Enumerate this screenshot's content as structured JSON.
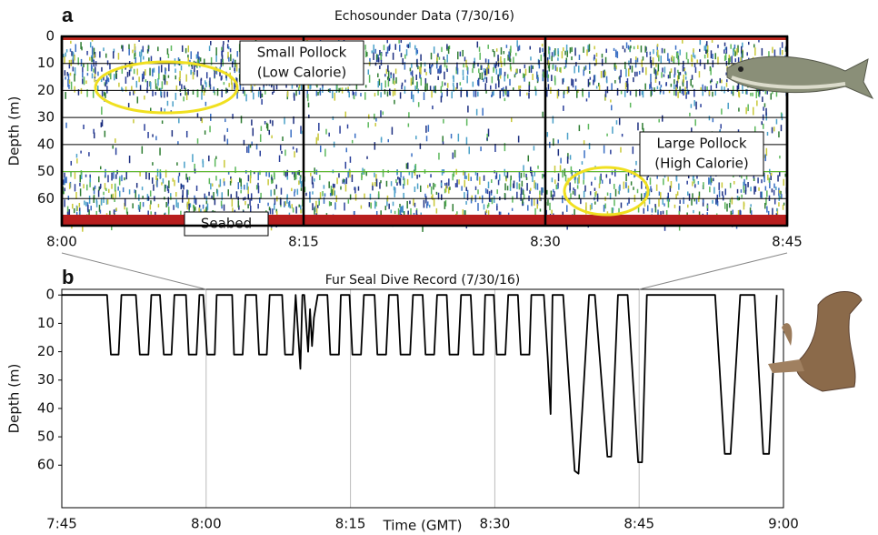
{
  "chart_data": [
    {
      "type": "echogram",
      "label": "a",
      "title": "Echosounder Data (7/30/16)",
      "ylabel": "Depth (m)",
      "xlim": [
        480,
        525
      ],
      "xticks": [
        {
          "value": 480,
          "label": "8:00"
        },
        {
          "value": 495,
          "label": "8:15"
        },
        {
          "value": 510,
          "label": "8:30"
        },
        {
          "value": 525,
          "label": "8:45"
        }
      ],
      "ylim": [
        0,
        70
      ],
      "yticks": [
        0,
        10,
        20,
        30,
        40,
        50,
        60
      ],
      "grid": "y",
      "annotations": [
        {
          "lines": [
            "Small Pollock",
            "(Low Calorie)"
          ]
        },
        {
          "lines": [
            "Large Pollock",
            "(High Calorie)"
          ]
        },
        {
          "lines": [
            "Seabed"
          ]
        }
      ]
    },
    {
      "type": "line",
      "label": "b",
      "title": "Fur Seal Dive Record (7/30/16)",
      "xlabel": "Time (GMT)",
      "ylabel": "Depth (m)",
      "xlim": [
        465,
        540
      ],
      "xticks": [
        {
          "value": 465,
          "label": "7:45"
        },
        {
          "value": 480,
          "label": "8:00"
        },
        {
          "value": 495,
          "label": "8:15"
        },
        {
          "value": 510,
          "label": "8:30"
        },
        {
          "value": 525,
          "label": "8:45"
        },
        {
          "value": 540,
          "label": "9:00"
        }
      ],
      "ylim": [
        -2,
        75
      ],
      "yticks": [
        0,
        10,
        20,
        30,
        40,
        50,
        60
      ],
      "grid": "x",
      "x": [
        465,
        469.7,
        470.1,
        470.9,
        471.2,
        472.7,
        473.1,
        474.0,
        474.3,
        475.2,
        475.6,
        476.4,
        476.7,
        477.9,
        478.2,
        479.0,
        479.3,
        479.7,
        480.1,
        480.9,
        481.1,
        482.7,
        482.9,
        483.8,
        484.1,
        485.2,
        485.5,
        486.3,
        486.6,
        487.9,
        488.2,
        489.0,
        489.3,
        489.8,
        490.0,
        490.2,
        490.6,
        490.8,
        491.0,
        491.2,
        491.6,
        492.6,
        492.9,
        493.8,
        494.0,
        494.9,
        495.2,
        496.1,
        496.4,
        497.5,
        497.8,
        498.7,
        499.0,
        499.9,
        500.2,
        501.2,
        501.5,
        502.5,
        502.8,
        503.7,
        504.0,
        505.0,
        505.3,
        506.2,
        506.5,
        507.5,
        507.8,
        508.8,
        509.0,
        509.9,
        510.2,
        511.1,
        511.4,
        512.4,
        512.7,
        513.6,
        513.8,
        515.1,
        515.5,
        515.8,
        516.0,
        517.1,
        518.3,
        518.7,
        519.8,
        520.4,
        521.7,
        522.1,
        522.8,
        523.8,
        524.9,
        525.3,
        525.8,
        532.9,
        533.9,
        534.5,
        535.5,
        537.0,
        537.9,
        538.5,
        539.3
      ],
      "series": [
        {
          "color": "#000000",
          "values": [
            0,
            0,
            21,
            21,
            0,
            0,
            21,
            21,
            0,
            0,
            21,
            21,
            0,
            0,
            21,
            21,
            0,
            0,
            21,
            21,
            0,
            0,
            21,
            21,
            0,
            0,
            21,
            21,
            0,
            0,
            21,
            21,
            0,
            26,
            0,
            0,
            20,
            5,
            18,
            8,
            0,
            0,
            21,
            21,
            0,
            0,
            21,
            21,
            0,
            0,
            21,
            21,
            0,
            0,
            21,
            21,
            0,
            0,
            21,
            21,
            0,
            0,
            21,
            21,
            0,
            0,
            21,
            21,
            0,
            0,
            21,
            21,
            0,
            0,
            21,
            21,
            0,
            0,
            22,
            42,
            0,
            0,
            62,
            63,
            0,
            0,
            57,
            57,
            0,
            0,
            59,
            59,
            0,
            0,
            56,
            56,
            0,
            0,
            56,
            56,
            0
          ]
        }
      ]
    }
  ]
}
